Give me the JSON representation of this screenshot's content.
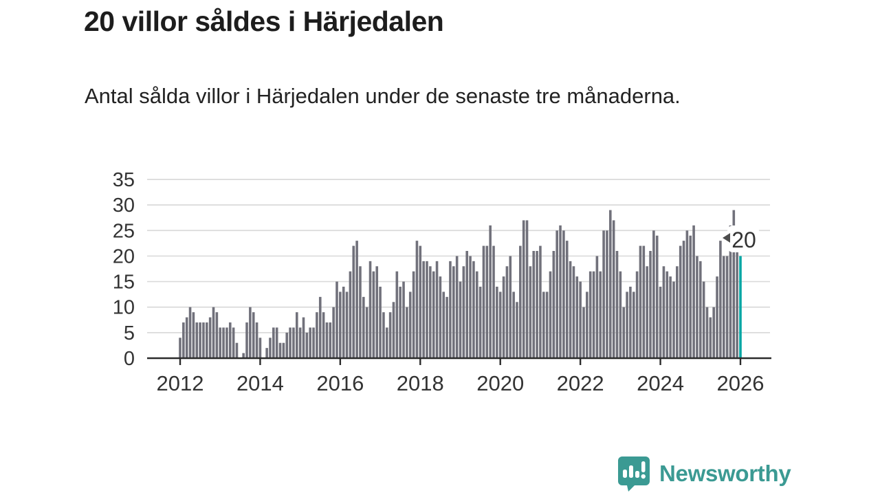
{
  "header": {
    "title": "20 villor såldes i Härjedalen",
    "subtitle": "Antal sålda villor i Härjedalen under de senaste tre månaderna."
  },
  "chart_data": {
    "type": "bar",
    "title": "20 villor såldes i Härjedalen",
    "xlabel": "",
    "ylabel": "",
    "x_unit": "month",
    "x_start_year": 2012,
    "x_tick_years": [
      2012,
      2014,
      2016,
      2018,
      2020,
      2022,
      2024,
      2026
    ],
    "y_ticks": [
      0,
      5,
      10,
      15,
      20,
      25,
      30,
      35
    ],
    "ylim": [
      0,
      35
    ],
    "grid": true,
    "values": [
      4,
      7,
      8,
      10,
      9,
      7,
      7,
      7,
      7,
      8,
      10,
      9,
      6,
      6,
      6,
      7,
      6,
      3,
      0,
      1,
      7,
      10,
      9,
      7,
      4,
      0,
      2,
      4,
      6,
      6,
      3,
      3,
      5,
      6,
      6,
      9,
      6,
      8,
      5,
      6,
      6,
      9,
      12,
      9,
      7,
      7,
      10,
      15,
      13,
      14,
      13,
      17,
      22,
      23,
      18,
      12,
      10,
      19,
      17,
      18,
      14,
      9,
      6,
      9,
      11,
      17,
      14,
      15,
      10,
      13,
      17,
      23,
      22,
      19,
      19,
      18,
      17,
      19,
      16,
      13,
      12,
      19,
      18,
      20,
      15,
      18,
      21,
      20,
      19,
      17,
      14,
      22,
      22,
      26,
      22,
      14,
      13,
      16,
      18,
      20,
      13,
      11,
      22,
      27,
      27,
      18,
      21,
      21,
      22,
      13,
      13,
      17,
      21,
      25,
      26,
      25,
      23,
      19,
      18,
      16,
      15,
      10,
      13,
      17,
      17,
      20,
      17,
      25,
      25,
      29,
      27,
      21,
      17,
      10,
      13,
      14,
      13,
      17,
      22,
      22,
      18,
      21,
      25,
      24,
      14,
      18,
      17,
      16,
      15,
      18,
      22,
      23,
      25,
      24,
      26,
      20,
      19,
      15,
      10,
      8,
      10,
      16,
      23,
      20,
      20,
      26,
      29,
      22,
      20
    ],
    "highlight_last_bar": true,
    "highlight_value_label": "20",
    "colors": {
      "bar": "#71717b",
      "highlight": "#00a6a4",
      "grid": "#dadada",
      "axis": "#2b2b2b",
      "tick_label": "#333333",
      "callout_text": "#333333",
      "callout_bg": "#ffffff",
      "callout_arrow": "#4d4d4d"
    }
  },
  "footer": {
    "brand": "Newsworthy",
    "brand_color": "#3b9a93",
    "logo_icon": "bar-chart-speech-bubble-icon"
  }
}
